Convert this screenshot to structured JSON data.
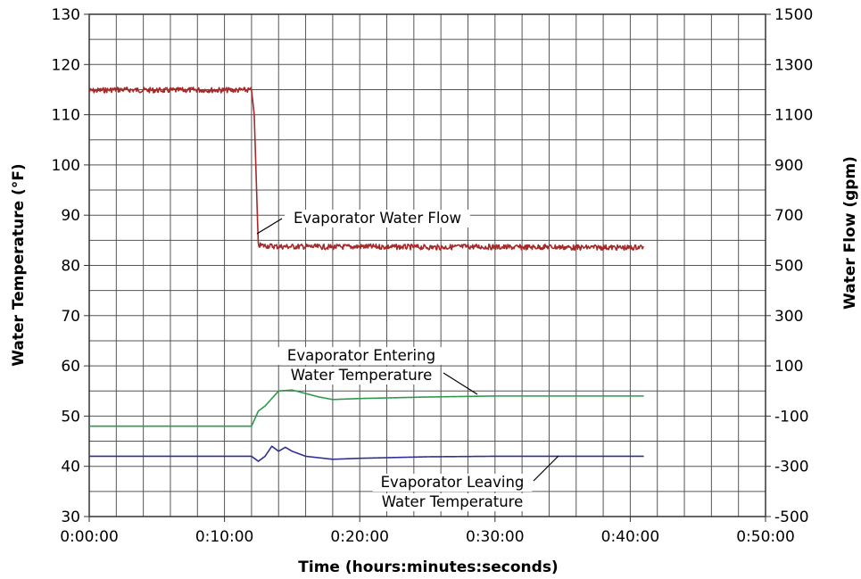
{
  "chart_data": {
    "type": "line",
    "xlabel": "Time (hours:minutes:seconds)",
    "ylabel": "Water Temperature (°F)",
    "y2label": "Water Flow (gpm)",
    "x_unit": "minutes",
    "xlim": [
      0,
      50
    ],
    "ylim": [
      30,
      130
    ],
    "y2lim": [
      -500,
      1500
    ],
    "grid": true,
    "x_ticks": [
      0,
      10,
      20,
      30,
      40,
      50
    ],
    "x_tick_labels": [
      "0:00:00",
      "0:10:00",
      "0:20:00",
      "0:30:00",
      "0:40:00",
      "0:50:00"
    ],
    "y_ticks": [
      30,
      40,
      50,
      60,
      70,
      80,
      90,
      100,
      110,
      120,
      130
    ],
    "y_tick_labels": [
      "30",
      "40",
      "50",
      "60",
      "70",
      "80",
      "90",
      "100",
      "110",
      "120",
      "130"
    ],
    "y2_ticks": [
      -500,
      -300,
      -100,
      100,
      300,
      500,
      700,
      900,
      1100,
      1300,
      1500
    ],
    "y2_tick_labels": [
      "-500",
      "-300",
      "-100",
      "100",
      "300",
      "500",
      "700",
      "900",
      "1100",
      "1300",
      "1500"
    ],
    "series": [
      {
        "name": "Evaporator Water Flow",
        "axis": "right",
        "color": "#a52a2a",
        "x": [
          0,
          2,
          4,
          6,
          8,
          10,
          12,
          12.2,
          12.5,
          14,
          16,
          18,
          20,
          22,
          24,
          26,
          28,
          30,
          32,
          34,
          36,
          38,
          40,
          41
        ],
        "y": [
          1195,
          1200,
          1198,
          1197,
          1199,
          1198,
          1198,
          1100,
          580,
          575,
          575,
          573,
          575,
          574,
          573,
          572,
          575,
          573,
          572,
          574,
          571,
          572,
          570,
          575
        ]
      },
      {
        "name": "Evaporator Entering Water Temperature",
        "axis": "left",
        "color": "#2e9b4a",
        "x": [
          0,
          12,
          12.5,
          13,
          14,
          15,
          16,
          17,
          18,
          20,
          25,
          30,
          35,
          41
        ],
        "y": [
          48,
          48,
          51,
          52,
          55,
          55.2,
          54.5,
          53.8,
          53.3,
          53.5,
          53.8,
          54,
          54,
          54
        ]
      },
      {
        "name": "Evaporator Leaving Water Temperature",
        "axis": "left",
        "color": "#2e3192",
        "x": [
          0,
          12,
          12.5,
          13,
          13.5,
          14,
          14.5,
          15,
          16,
          17,
          18,
          20,
          25,
          30,
          35,
          41
        ],
        "y": [
          42,
          42,
          41,
          42,
          44,
          43,
          43.8,
          43,
          42,
          41.7,
          41.4,
          41.6,
          41.9,
          42,
          42,
          42
        ]
      }
    ],
    "annotations": [
      {
        "lines": [
          "Evaporator Water Flow"
        ]
      },
      {
        "lines": [
          "Evaporator Entering",
          "Water Temperature"
        ]
      },
      {
        "lines": [
          "Evaporator Leaving",
          "Water Temperature"
        ]
      }
    ]
  }
}
